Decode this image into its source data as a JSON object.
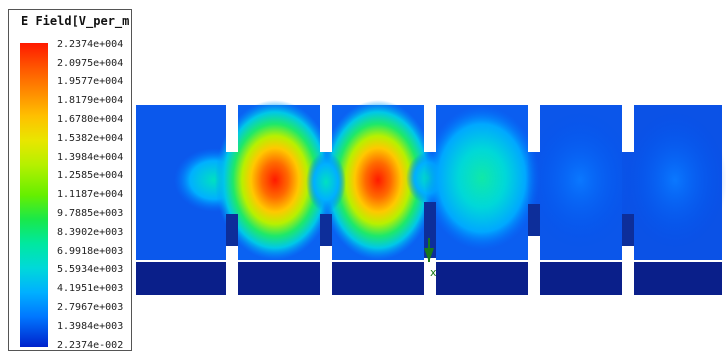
{
  "legend": {
    "title": "E Field[V_per_m",
    "ticks": [
      "2.2374e+004",
      "2.0975e+004",
      "1.9577e+004",
      "1.8179e+004",
      "1.6780e+004",
      "1.5382e+004",
      "1.3984e+004",
      "1.2585e+004",
      "1.1187e+004",
      "9.7885e+003",
      "8.3902e+003",
      "6.9918e+003",
      "5.5934e+003",
      "4.1951e+003",
      "2.7967e+003",
      "1.3984e+003",
      "2.2374e-002"
    ]
  },
  "colors": {
    "max": "#ff1a00",
    "high": "#ff8a00",
    "mid_high": "#e9e600",
    "mid": "#66ef00",
    "mid_low": "#00e8a0",
    "low": "#00b0ff",
    "base": "#0050e8",
    "min": "#0022cc",
    "substrate": "#0a1f8a"
  },
  "axis_marker": {
    "label": "x"
  }
}
